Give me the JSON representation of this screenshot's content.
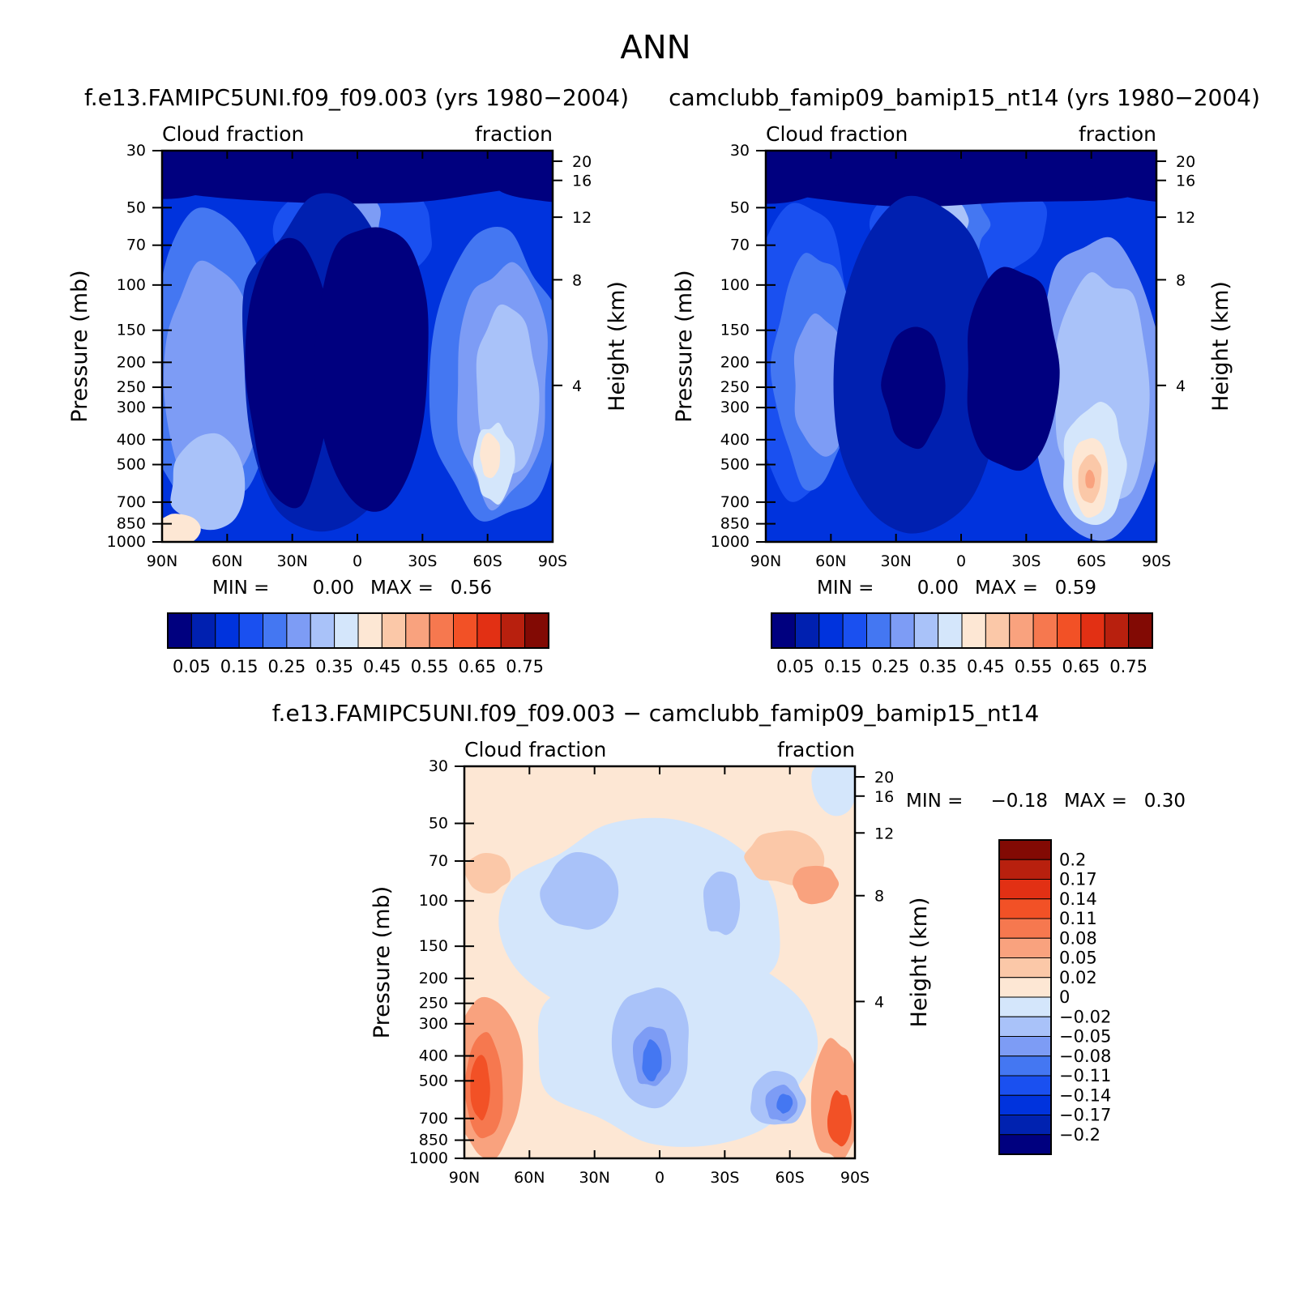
{
  "figure_title": "ANN",
  "colors": {
    "top_scale": [
      "#00007f",
      "#0020b0",
      "#0033dd",
      "#1a50f0",
      "#4477f2",
      "#7d9cf5",
      "#a9c2f9",
      "#d4e6fb",
      "#fde7d4",
      "#fbc8a8",
      "#f9a27e",
      "#f6784f",
      "#f25126",
      "#e23014",
      "#b8200e",
      "#820a04"
    ],
    "diff_scale": [
      "#00007f",
      "#0022b0",
      "#0033dd",
      "#1a50f0",
      "#4477f2",
      "#7d9cf5",
      "#a9c2f9",
      "#d4e6fb",
      "#fde7d4",
      "#fbc8a8",
      "#f9a27e",
      "#f6784f",
      "#f25126",
      "#e23014",
      "#b8200e",
      "#820a04"
    ]
  },
  "chart_data": [
    {
      "type": "heatmap",
      "id": "model-a",
      "title": "f.e13.FAMIPC5UNI.f09_f09.003 (yrs 1980−2004)",
      "left_label": "Cloud fraction",
      "right_label": "fraction",
      "xlabel": "",
      "ylabel": "Pressure (mb)",
      "y2label": "Height (km)",
      "x_ticks": [
        "90N",
        "60N",
        "30N",
        "0",
        "30S",
        "60S",
        "90S"
      ],
      "y_ticks": [
        "30",
        "50",
        "70",
        "100",
        "150",
        "200",
        "250",
        "300",
        "400",
        "500",
        "700",
        "850",
        "1000"
      ],
      "height_ticks": [
        "20",
        "16",
        "12",
        "8",
        "4"
      ],
      "ylim_mb": [
        30,
        1000
      ],
      "stats": {
        "min_label": "MIN =",
        "min": "0.00",
        "max_label": "MAX =",
        "max": "0.56"
      },
      "colorbar_labels": [
        "0.05",
        "0.15",
        "0.25",
        "0.35",
        "0.45",
        "0.55",
        "0.65",
        "0.75"
      ],
      "contour_levels": [
        0.05,
        0.1,
        0.15,
        0.2,
        0.25,
        0.3,
        0.35,
        0.4,
        0.45,
        0.5,
        0.55,
        0.6,
        0.65,
        0.7,
        0.75
      ]
    },
    {
      "type": "heatmap",
      "id": "model-b",
      "title": "camclubb_famip09_bamip15_nt14 (yrs 1980−2004)",
      "left_label": "Cloud fraction",
      "right_label": "fraction",
      "xlabel": "",
      "ylabel": "Pressure (mb)",
      "y2label": "Height (km)",
      "x_ticks": [
        "90N",
        "60N",
        "30N",
        "0",
        "30S",
        "60S",
        "90S"
      ],
      "y_ticks": [
        "30",
        "50",
        "70",
        "100",
        "150",
        "200",
        "250",
        "300",
        "400",
        "500",
        "700",
        "850",
        "1000"
      ],
      "height_ticks": [
        "20",
        "16",
        "12",
        "8",
        "4"
      ],
      "ylim_mb": [
        30,
        1000
      ],
      "stats": {
        "min_label": "MIN =",
        "min": "0.00",
        "max_label": "MAX =",
        "max": "0.59"
      },
      "colorbar_labels": [
        "0.05",
        "0.15",
        "0.25",
        "0.35",
        "0.45",
        "0.55",
        "0.65",
        "0.75"
      ],
      "contour_levels": [
        0.05,
        0.1,
        0.15,
        0.2,
        0.25,
        0.3,
        0.35,
        0.4,
        0.45,
        0.5,
        0.55,
        0.6,
        0.65,
        0.7,
        0.75
      ]
    },
    {
      "type": "heatmap",
      "id": "difference",
      "title": "f.e13.FAMIPC5UNI.f09_f09.003 − camclubb_famip09_bamip15_nt14",
      "left_label": "Cloud fraction",
      "right_label": "fraction",
      "xlabel": "",
      "ylabel": "Pressure (mb)",
      "y2label": "Height (km)",
      "x_ticks": [
        "90N",
        "60N",
        "30N",
        "0",
        "30S",
        "60S",
        "90S"
      ],
      "y_ticks": [
        "30",
        "50",
        "70",
        "100",
        "150",
        "200",
        "250",
        "300",
        "400",
        "500",
        "700",
        "850",
        "1000"
      ],
      "height_ticks": [
        "20",
        "16",
        "12",
        "8",
        "4"
      ],
      "ylim_mb": [
        30,
        1000
      ],
      "stats": {
        "min_label": "MIN =",
        "min": "−0.18",
        "max_label": "MAX =",
        "max": "0.30"
      },
      "colorbar_labels": [
        "0.2",
        "0.17",
        "0.14",
        "0.11",
        "0.08",
        "0.05",
        "0.02",
        "0",
        "−0.02",
        "−0.05",
        "−0.08",
        "−0.11",
        "−0.14",
        "−0.17",
        "−0.2"
      ],
      "contour_levels": [
        -0.2,
        -0.17,
        -0.14,
        -0.11,
        -0.08,
        -0.05,
        -0.02,
        0,
        0.02,
        0.05,
        0.08,
        0.11,
        0.14,
        0.17,
        0.2
      ]
    }
  ]
}
